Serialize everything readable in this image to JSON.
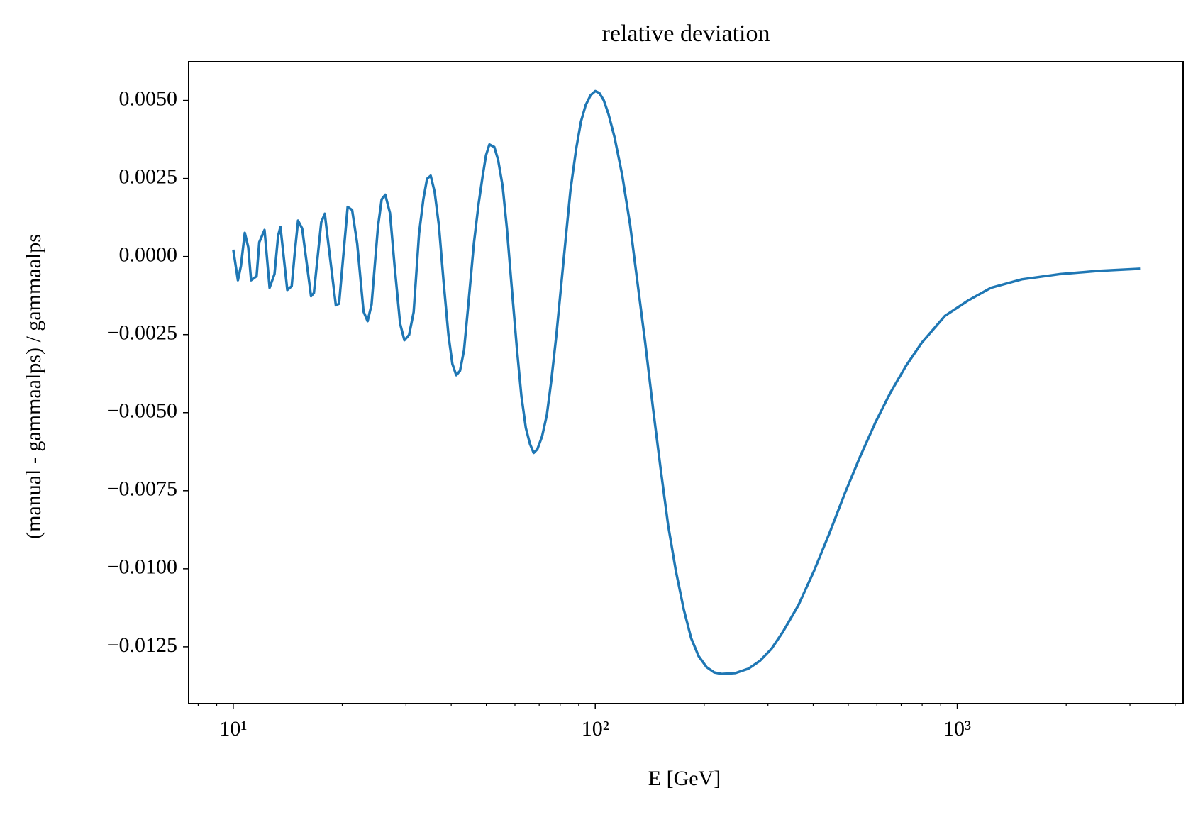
{
  "chart_data": {
    "type": "line",
    "title": "relative deviation",
    "xlabel": "E [GeV]",
    "ylabel": "(manual - gammaalps) / gammaalps",
    "xscale": "log",
    "xlim": [
      7.53,
      4207
    ],
    "ylim": [
      -0.01432,
      0.00624
    ],
    "xticks": [
      {
        "value": 10,
        "label": "10¹"
      },
      {
        "value": 100,
        "label": "10²"
      },
      {
        "value": 1000,
        "label": "10³"
      }
    ],
    "xminorticks": [
      8,
      9,
      20,
      30,
      40,
      50,
      60,
      70,
      80,
      90,
      200,
      300,
      400,
      500,
      600,
      700,
      800,
      900,
      2000,
      3000,
      4000
    ],
    "yticks": [
      {
        "value": 0.005,
        "label": "0.0050"
      },
      {
        "value": 0.0025,
        "label": "0.0025"
      },
      {
        "value": 0,
        "label": "0.0000"
      },
      {
        "value": -0.0025,
        "label": "−0.0025"
      },
      {
        "value": -0.005,
        "label": "−0.0050"
      },
      {
        "value": -0.0075,
        "label": "−0.0075"
      },
      {
        "value": -0.01,
        "label": "−0.0100"
      },
      {
        "value": -0.0125,
        "label": "−0.0125"
      }
    ],
    "series": [
      {
        "color": "#1f77b4",
        "x": [
          10,
          10.3,
          10.5,
          10.76,
          11.0,
          11.2,
          11.6,
          11.8,
          12.2,
          12.6,
          13.0,
          13.3,
          13.5,
          14.1,
          14.5,
          14.8,
          15.1,
          15.5,
          16.4,
          16.7,
          17.5,
          17.9,
          18.2,
          19.2,
          19.6,
          20.7,
          21.3,
          22.0,
          22.9,
          23.5,
          24.1,
          25.1,
          25.7,
          26.3,
          27.1,
          27.9,
          28.9,
          29.7,
          30.6,
          31.5,
          32.6,
          33.5,
          34.3,
          35.1,
          36.0,
          37.0,
          38.1,
          39.3,
          40.3,
          41.3,
          42.3,
          43.4,
          44.6,
          46.2,
          47.6,
          48.8,
          49.9,
          51.0,
          52.6,
          53.9,
          55.5,
          57.0,
          58.6,
          60.8,
          62.5,
          64.3,
          66.0,
          67.6,
          69.2,
          71.3,
          73.5,
          75.6,
          78.1,
          80.5,
          83.0,
          85.4,
          88.6,
          91.3,
          94.1,
          97.1,
          100,
          102.6,
          105.6,
          108.8,
          113,
          118.7,
          124.8,
          130.7,
          137.4,
          144.3,
          151.5,
          159,
          167,
          175.5,
          184,
          193,
          203,
          213,
          224,
          244,
          265,
          285,
          307,
          330,
          364,
          402,
          444,
          489,
          539,
          594,
          655,
          723,
          798,
          925,
          1071,
          1240,
          1508,
          1928,
          2460,
          3200
        ],
        "values": [
          0.00022,
          -0.00076,
          -0.0003,
          0.00076,
          0.0003,
          -0.00076,
          -0.00063,
          0.00046,
          0.00085,
          -0.001,
          -0.00056,
          0.00066,
          0.00095,
          -0.00107,
          -0.00095,
          0.00017,
          0.00115,
          0.0009,
          -0.00127,
          -0.00117,
          0.0011,
          0.00137,
          0.00066,
          -0.00156,
          -0.00151,
          0.00159,
          0.00149,
          0.00041,
          -0.00176,
          -0.00207,
          -0.00154,
          0.00095,
          0.00183,
          0.00198,
          0.00139,
          -0.0003,
          -0.00215,
          -0.00268,
          -0.00251,
          -0.00178,
          0.00073,
          0.00183,
          0.00249,
          0.00259,
          0.00207,
          0.00098,
          -0.0008,
          -0.00251,
          -0.00344,
          -0.0038,
          -0.00366,
          -0.003,
          -0.00154,
          0.00041,
          0.00168,
          0.00254,
          0.00324,
          0.00359,
          0.00351,
          0.0031,
          0.00224,
          0.0009,
          -0.0008,
          -0.003,
          -0.00446,
          -0.00549,
          -0.006,
          -0.00629,
          -0.00617,
          -0.00576,
          -0.00507,
          -0.00398,
          -0.00251,
          -0.00093,
          0.00066,
          0.00212,
          0.00346,
          0.00432,
          0.00485,
          0.00517,
          0.0053,
          0.00524,
          0.005,
          0.00456,
          0.00383,
          0.00261,
          0.00102,
          -0.0008,
          -0.00276,
          -0.00483,
          -0.00678,
          -0.00861,
          -0.01007,
          -0.01129,
          -0.01222,
          -0.0128,
          -0.01315,
          -0.01332,
          -0.01337,
          -0.01334,
          -0.0132,
          -0.01295,
          -0.01256,
          -0.01202,
          -0.01117,
          -0.01007,
          -0.00885,
          -0.00759,
          -0.00641,
          -0.00532,
          -0.00434,
          -0.00349,
          -0.00276,
          -0.0019,
          -0.00141,
          -0.001,
          -0.00073,
          -0.00056,
          -0.00046,
          -0.00039
        ]
      }
    ]
  }
}
